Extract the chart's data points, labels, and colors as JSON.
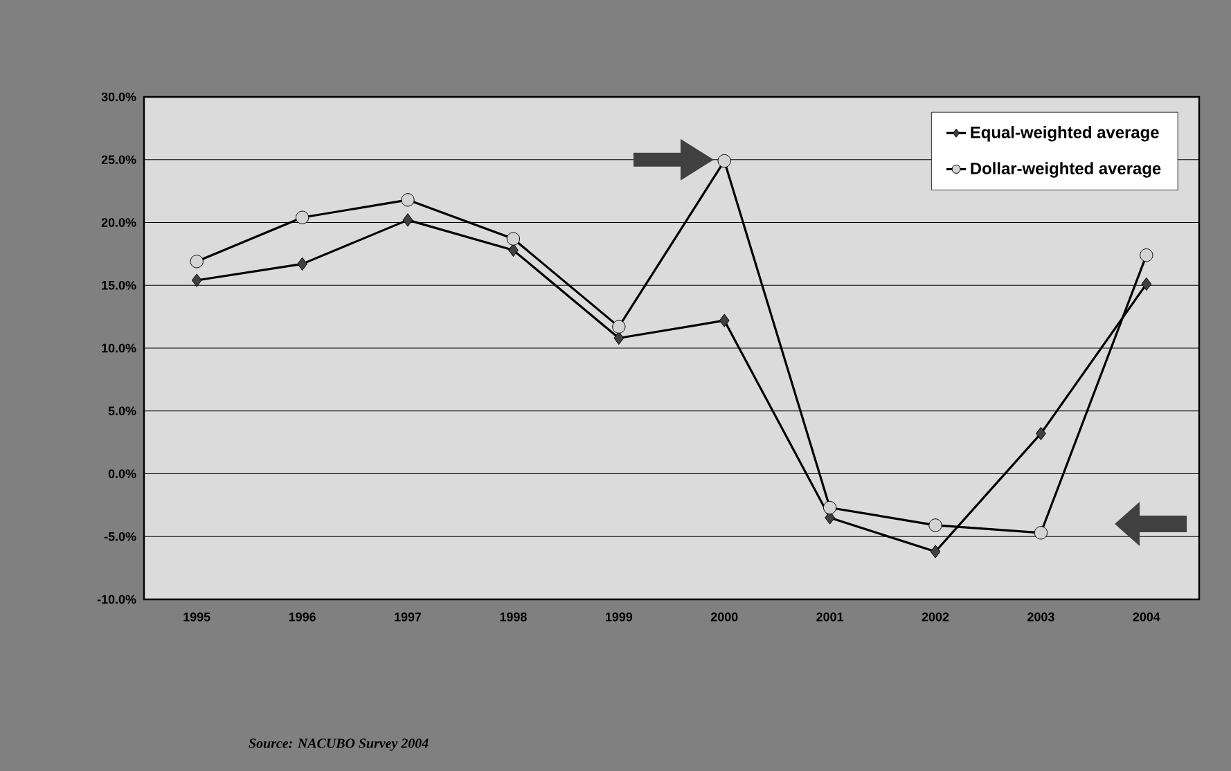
{
  "chart_data": {
    "type": "line",
    "categories": [
      "1995",
      "1996",
      "1997",
      "1998",
      "1999",
      "2000",
      "2001",
      "2002",
      "2003",
      "2004"
    ],
    "series": [
      {
        "name": "Equal-weighted average",
        "color": "#404040",
        "marker": "diamond",
        "values": [
          15.4,
          16.7,
          20.2,
          17.8,
          10.8,
          12.2,
          -3.5,
          -6.2,
          3.2,
          15.1
        ]
      },
      {
        "name": "Dollar-weighted average",
        "color": "#d4d4d4",
        "marker": "circle",
        "values": [
          16.9,
          20.4,
          21.8,
          18.7,
          11.7,
          24.9,
          -2.7,
          -4.1,
          -4.7,
          17.4
        ]
      }
    ],
    "ylim": [
      -10,
      30
    ],
    "yticks": [
      {
        "value": -10,
        "label": "-10.0%"
      },
      {
        "value": -5,
        "label": "-5.0%"
      },
      {
        "value": 0,
        "label": "0.0%"
      },
      {
        "value": 5,
        "label": "5.0%"
      },
      {
        "value": 10,
        "label": "10.0%"
      },
      {
        "value": 15,
        "label": "15.0%"
      },
      {
        "value": 20,
        "label": "20.0%"
      },
      {
        "value": 25,
        "label": "25.0%"
      },
      {
        "value": 30,
        "label": "30.0%"
      }
    ],
    "grid": "y",
    "legend": "top right",
    "line_style": "solid",
    "annotations": [
      "Source: NACUBO Survey 2004"
    ]
  }
}
